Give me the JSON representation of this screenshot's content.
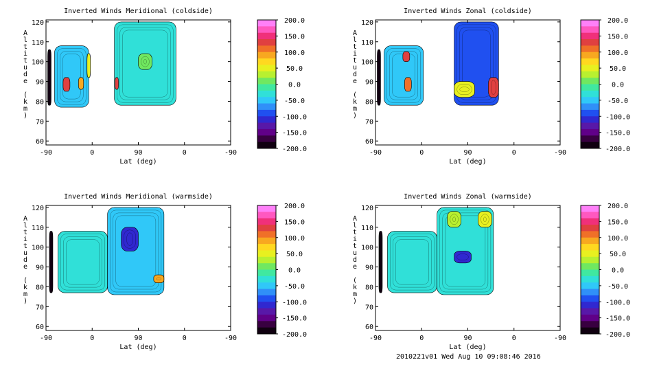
{
  "footer": "2010221v01 Wed Aug 10 09:08:46 2016",
  "colorbar": {
    "labels": [
      "200.0",
      "150.0",
      "100.0",
      "50.0",
      "0.0",
      "-50.0",
      "-100.0",
      "-150.0",
      "-200.0"
    ],
    "colors": [
      "#ff80f8",
      "#ff58c0",
      "#f0307a",
      "#e04040",
      "#f07028",
      "#f8a820",
      "#ffd820",
      "#e8f020",
      "#b8f030",
      "#70e860",
      "#40e8a0",
      "#30e0d8",
      "#30c8f8",
      "#3090f8",
      "#2050f0",
      "#3028d0",
      "#5818a8",
      "#600088",
      "#380040",
      "#100010"
    ]
  },
  "panels": [
    {
      "title": "Inverted Winds Meridional (coldside)",
      "xlabel": "Lat (deg)",
      "ylabel": "Altitude (km)",
      "xticks": [
        "-90",
        "0",
        "90",
        "0",
        "-90"
      ],
      "yticks": [
        "60",
        "70",
        "80",
        "90",
        "100",
        "110",
        "120"
      ],
      "ylim": [
        58,
        121
      ]
    },
    {
      "title": "Inverted Winds Zonal (coldside)",
      "xlabel": "Lat (deg)",
      "ylabel": "Altitude (km)",
      "xticks": [
        "-90",
        "0",
        "90",
        "0",
        "-90"
      ],
      "yticks": [
        "60",
        "70",
        "80",
        "90",
        "100",
        "110",
        "120"
      ],
      "ylim": [
        58,
        121
      ]
    },
    {
      "title": "Inverted Winds Meridional (warmside)",
      "xlabel": "Lat (deg)",
      "ylabel": "Altitude (km)",
      "xticks": [
        "-90",
        "0",
        "90",
        "0",
        "-90"
      ],
      "yticks": [
        "60",
        "70",
        "80",
        "90",
        "100",
        "110",
        "120"
      ],
      "ylim": [
        58,
        121
      ]
    },
    {
      "title": "Inverted Winds Zonal (warmside)",
      "xlabel": "Lat (deg)",
      "ylabel": "Altitude (km)",
      "xticks": [
        "-90",
        "0",
        "90",
        "0",
        "-90"
      ],
      "yticks": [
        "60",
        "70",
        "80",
        "90",
        "100",
        "110",
        "120"
      ],
      "ylim": [
        58,
        121
      ]
    }
  ],
  "chart_data": [
    {
      "type": "heatmap",
      "title": "Inverted Winds Meridional (coldside)",
      "xlabel": "Lat (deg)",
      "ylabel": "Altitude (km)",
      "zrange": [
        -200,
        200
      ],
      "regions": [
        {
          "x": [
            -85,
            -75
          ],
          "y": [
            78,
            106
          ],
          "value": -180
        },
        {
          "x": [
            -65,
            35
          ],
          "y": [
            77,
            108
          ],
          "value": -40
        },
        {
          "x": [
            -40,
            -20
          ],
          "y": [
            85,
            92
          ],
          "value": 120
        },
        {
          "x": [
            5,
            20
          ],
          "y": [
            86,
            92
          ],
          "value": 100
        },
        {
          "x": [
            30,
            40
          ],
          "y": [
            92,
            104
          ],
          "value": 60
        },
        {
          "x": [
            110,
            290
          ],
          "y": [
            78,
            120
          ],
          "value": -30
        },
        {
          "x": [
            112,
            122
          ],
          "y": [
            86,
            92
          ],
          "value": 140
        },
        {
          "x": [
            180,
            220
          ],
          "y": [
            96,
            104
          ],
          "value": 10
        }
      ]
    },
    {
      "type": "heatmap",
      "title": "Inverted Winds Zonal (coldside)",
      "xlabel": "Lat (deg)",
      "ylabel": "Altitude (km)",
      "zrange": [
        -200,
        200
      ],
      "regions": [
        {
          "x": [
            -85,
            -75
          ],
          "y": [
            78,
            106
          ],
          "value": -180
        },
        {
          "x": [
            -65,
            50
          ],
          "y": [
            78,
            108
          ],
          "value": -40
        },
        {
          "x": [
            -5,
            15
          ],
          "y": [
            85,
            92
          ],
          "value": 110
        },
        {
          "x": [
            -10,
            10
          ],
          "y": [
            100,
            105
          ],
          "value": 120
        },
        {
          "x": [
            140,
            270
          ],
          "y": [
            78,
            120
          ],
          "value": -80
        },
        {
          "x": [
            240,
            270
          ],
          "y": [
            82,
            92
          ],
          "value": 120
        },
        {
          "x": [
            140,
            200
          ],
          "y": [
            82,
            90
          ],
          "value": 60
        }
      ]
    },
    {
      "type": "heatmap",
      "title": "Inverted Winds Meridional (warmside)",
      "xlabel": "Lat (deg)",
      "ylabel": "Altitude (km)",
      "zrange": [
        -200,
        200
      ],
      "regions": [
        {
          "x": [
            -80,
            -70
          ],
          "y": [
            77,
            108
          ],
          "value": -180
        },
        {
          "x": [
            -55,
            90
          ],
          "y": [
            77,
            108
          ],
          "value": -30
        },
        {
          "x": [
            90,
            255
          ],
          "y": [
            76,
            120
          ],
          "value": -50
        },
        {
          "x": [
            130,
            180
          ],
          "y": [
            98,
            110
          ],
          "value": -110
        },
        {
          "x": [
            225,
            255
          ],
          "y": [
            82,
            86
          ],
          "value": 90
        }
      ]
    },
    {
      "type": "heatmap",
      "title": "Inverted Winds Zonal (warmside)",
      "xlabel": "Lat (deg)",
      "ylabel": "Altitude (km)",
      "zrange": [
        -200,
        200
      ],
      "regions": [
        {
          "x": [
            -80,
            -70
          ],
          "y": [
            77,
            108
          ],
          "value": -180
        },
        {
          "x": [
            -55,
            90
          ],
          "y": [
            77,
            108
          ],
          "value": -30
        },
        {
          "x": [
            90,
            255
          ],
          "y": [
            76,
            120
          ],
          "value": -20
        },
        {
          "x": [
            120,
            160
          ],
          "y": [
            110,
            118
          ],
          "value": 40
        },
        {
          "x": [
            210,
            250
          ],
          "y": [
            110,
            118
          ],
          "value": 50
        },
        {
          "x": [
            140,
            190
          ],
          "y": [
            92,
            98
          ],
          "value": -100
        }
      ]
    }
  ]
}
